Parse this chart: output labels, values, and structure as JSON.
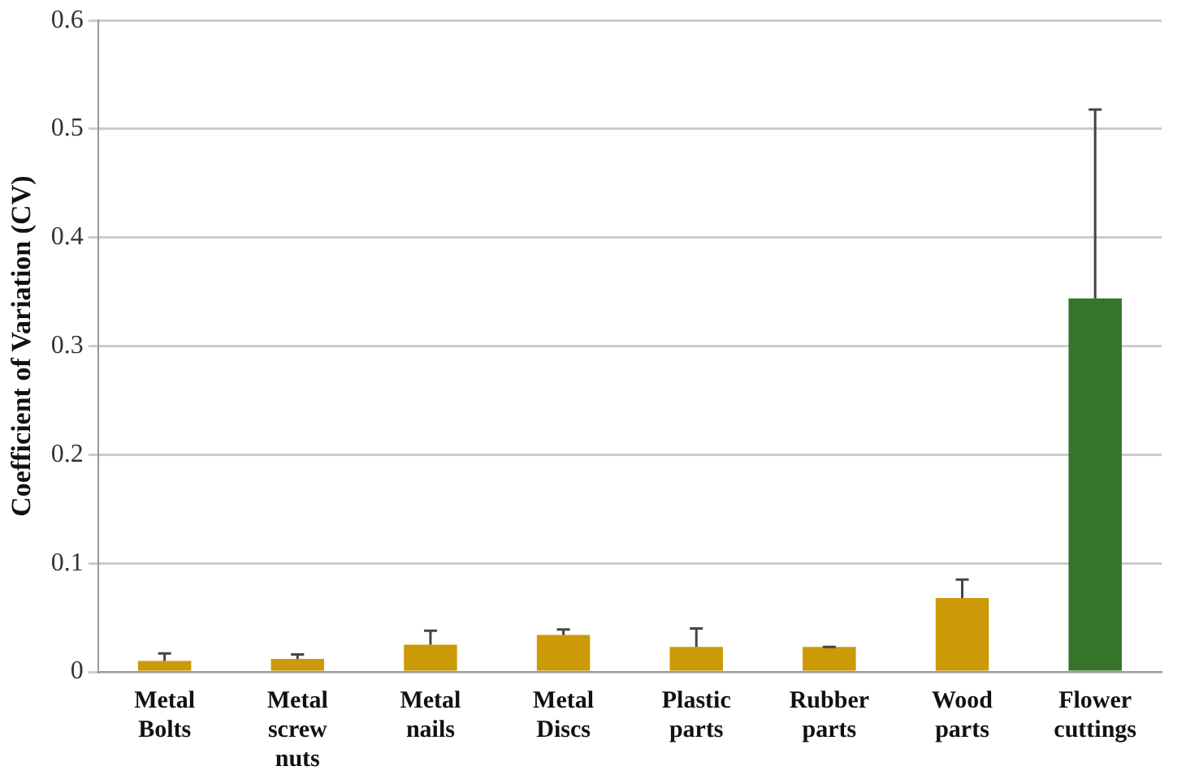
{
  "chart_data": {
    "type": "bar",
    "ylabel": "Coefficient of Variation (CV)",
    "categories": [
      "Metal\nBolts",
      "Metal\nscrew\nnuts",
      "Metal\nnails",
      "Metal\nDiscs",
      "Plastic\nparts",
      "Rubber\nparts",
      "Wood\nparts",
      "Flower\ncuttings"
    ],
    "values": [
      0.01,
      0.012,
      0.025,
      0.034,
      0.023,
      0.023,
      0.068,
      0.344
    ],
    "errors": [
      [
        0.01,
        0.017
      ],
      [
        0.012,
        0.016
      ],
      [
        0.025,
        0.038
      ],
      [
        0.034,
        0.039
      ],
      [
        0.023,
        0.04
      ],
      [
        0.023,
        0.023
      ],
      [
        0.068,
        0.085
      ],
      [
        0.344,
        0.518
      ]
    ],
    "colors": [
      "#cc9a06",
      "#cc9a06",
      "#cc9a06",
      "#cc9a06",
      "#cc9a06",
      "#cc9a06",
      "#cc9a06",
      "#347529"
    ],
    "ylim": [
      0,
      0.6
    ],
    "yticks": [
      0,
      0.1,
      0.2,
      0.3,
      0.4,
      0.5,
      0.6
    ],
    "grid": "y",
    "legend": false
  }
}
